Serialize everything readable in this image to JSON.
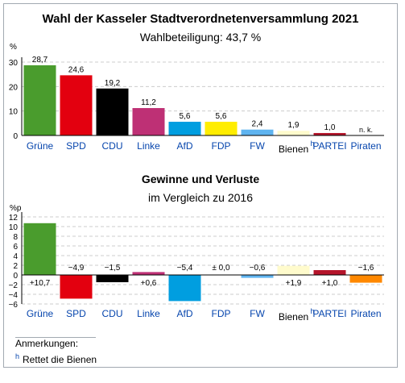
{
  "chart_data": [
    {
      "type": "bar",
      "title": "Wahl der Kasseler Stadtverordnetenversammlung 2021",
      "subtitle": "Wahlbeteiligung: 43,7 %",
      "ylabel": "%",
      "ylim": [
        0,
        30
      ],
      "yticks": [
        0,
        10,
        20,
        30
      ],
      "grid": true,
      "categories": [
        "Grüne",
        "SPD",
        "CDU",
        "Linke",
        "AfD",
        "FDP",
        "FW",
        "Bienen",
        "PARTEI",
        "Piraten"
      ],
      "values": [
        28.7,
        24.6,
        19.2,
        11.2,
        5.6,
        5.6,
        2.4,
        1.9,
        1.0,
        null
      ],
      "value_labels": [
        "28,7",
        "24,6",
        "19,2",
        "11,2",
        "5,6",
        "5,6",
        "2,4",
        "1,9",
        "1,0",
        "n. k."
      ],
      "colors": [
        "#4a9c2d",
        "#e3000f",
        "#000000",
        "#be3075",
        "#009ee0",
        "#ffed00",
        "#5fb4f0",
        "#fffbcc",
        "#b5152b",
        "#ff8800"
      ]
    },
    {
      "type": "bar",
      "title": "Gewinne und Verluste",
      "subtitle": "im Vergleich zu 2016",
      "ylabel": "%p",
      "ylim": [
        -6,
        12
      ],
      "yticks": [
        -6,
        -4,
        -2,
        0,
        2,
        4,
        6,
        8,
        10,
        12
      ],
      "grid": true,
      "categories": [
        "Grüne",
        "SPD",
        "CDU",
        "Linke",
        "AfD",
        "FDP",
        "FW",
        "Bienen",
        "PARTEI",
        "Piraten"
      ],
      "values": [
        10.7,
        -4.9,
        -1.5,
        0.6,
        -5.4,
        0.0,
        -0.6,
        1.9,
        1.0,
        -1.6
      ],
      "value_labels": [
        "+10,7",
        "−4,9",
        "−1,5",
        "+0,6",
        "−5,4",
        "± 0,0",
        "−0,6",
        "+1,9",
        "+1,0",
        "−1,6"
      ],
      "colors": [
        "#4a9c2d",
        "#e3000f",
        "#000000",
        "#be3075",
        "#009ee0",
        "#ffed00",
        "#5fb4f0",
        "#fffbcc",
        "#b5152b",
        "#ff8800"
      ]
    }
  ],
  "footnote_marker": "h",
  "notes": {
    "heading": "Anmerkungen:",
    "marker": "h",
    "text": "Rettet die Bienen"
  }
}
